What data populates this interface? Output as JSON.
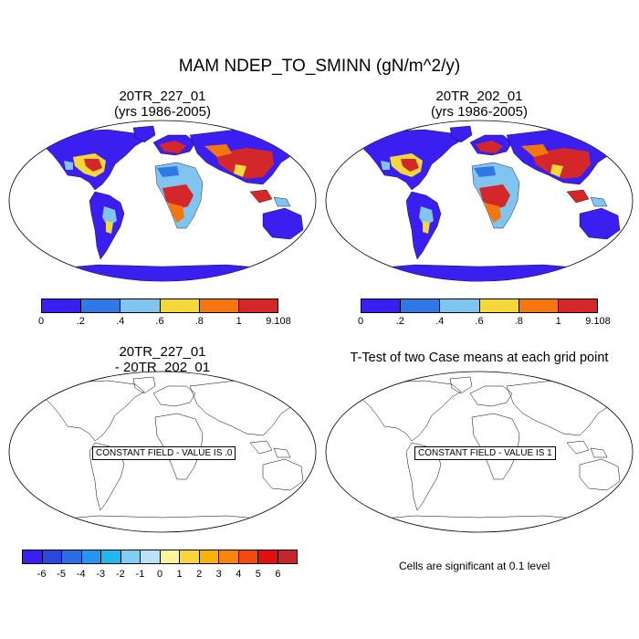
{
  "title": "MAM NDEP_TO_SMINN (gN/m^2/y)",
  "panels": [
    {
      "title_line1": "20TR_227_01",
      "title_line2": "(yrs 1986-2005)"
    },
    {
      "title_line1": "20TR_202_01",
      "title_line2": "(yrs 1986-2005)"
    },
    {
      "title_line1": "20TR_227_01",
      "title_line2": "- 20TR_202_01",
      "note": "CONSTANT FIELD - VALUE IS .0"
    },
    {
      "title_line1": "T-Test of two Case means at each grid point",
      "note": "CONSTANT FIELD - VALUE IS 1"
    }
  ],
  "colorbar_top": {
    "labels": [
      "0",
      ".2",
      ".4",
      ".6",
      ".8",
      "1",
      "9.108"
    ],
    "colors": [
      "#3b1ff0",
      "#2f78e6",
      "#80c4f0",
      "#f4d83a",
      "#f5760e",
      "#d4272a"
    ]
  },
  "colorbar_diff": {
    "labels": [
      "-6",
      "-5",
      "-4",
      "-3",
      "-2",
      "-1",
      "0",
      "1",
      "2",
      "3",
      "4",
      "5",
      "6"
    ],
    "colors": [
      "#3a1ff5",
      "#2a47e0",
      "#2a6ee6",
      "#2596f0",
      "#20b8f2",
      "#82cdf2",
      "#b9e2f8",
      "#fdf39c",
      "#fbd536",
      "#f9b20a",
      "#f7840d",
      "#f44a12",
      "#e30f0f",
      "#c8242c"
    ]
  },
  "significance_note": "Cells are significant at 0.1 level",
  "colors": {
    "ocean": "#ffffff",
    "low": "#3b1ff0",
    "coast": "#000000"
  }
}
